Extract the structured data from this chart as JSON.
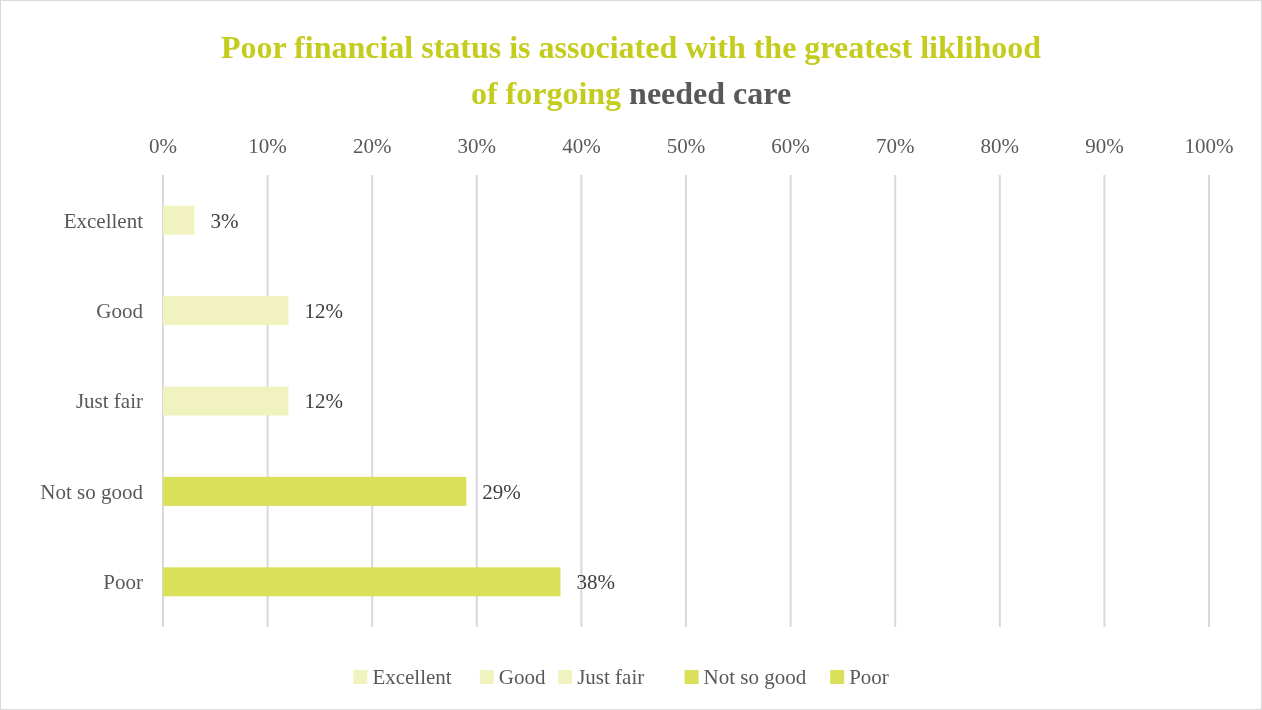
{
  "chart_data": {
    "type": "bar",
    "orientation": "horizontal",
    "stacked": true,
    "title": "Poor financial status is associated with the greatest liklihood of forgoing needed care",
    "categories": [
      "Excellent",
      "Good",
      "Just fair",
      "Not so good",
      "Poor"
    ],
    "series": [
      {
        "name": "Excellent",
        "color": "#f0f3c0",
        "values": [
          3,
          null,
          null,
          null,
          null
        ],
        "value_labels": [
          "3%",
          null,
          null,
          null,
          null
        ]
      },
      {
        "name": "Good",
        "color": "#f0f3c0",
        "values": [
          null,
          12,
          null,
          null,
          null
        ],
        "value_labels": [
          null,
          "12%",
          null,
          null,
          null
        ]
      },
      {
        "name": "Just fair",
        "color": "#f0f3c0",
        "values": [
          null,
          null,
          12,
          null,
          null
        ],
        "value_labels": [
          null,
          null,
          "12%",
          null,
          null
        ]
      },
      {
        "name": "Not so good",
        "color": "#dbe05a",
        "values": [
          null,
          null,
          null,
          29,
          null
        ],
        "value_labels": [
          null,
          null,
          null,
          "29%",
          null
        ]
      },
      {
        "name": "Poor",
        "color": "#dbe05a",
        "values": [
          null,
          null,
          null,
          null,
          38
        ],
        "value_labels": [
          null,
          null,
          null,
          null,
          "38%"
        ]
      }
    ],
    "xlim": [
      0,
      100
    ],
    "xticks": [
      {
        "value": 0,
        "label": "0%"
      },
      {
        "value": 10,
        "label": "10%"
      },
      {
        "value": 20,
        "label": "20%"
      },
      {
        "value": 30,
        "label": "30%"
      },
      {
        "value": 40,
        "label": "40%"
      },
      {
        "value": 50,
        "label": "50%"
      },
      {
        "value": 60,
        "label": "60%"
      },
      {
        "value": 70,
        "label": "70%"
      },
      {
        "value": 80,
        "label": "80%"
      },
      {
        "value": 90,
        "label": "90%"
      },
      {
        "value": 100,
        "label": "100%"
      }
    ],
    "grid": "x",
    "legend": "bottom"
  }
}
